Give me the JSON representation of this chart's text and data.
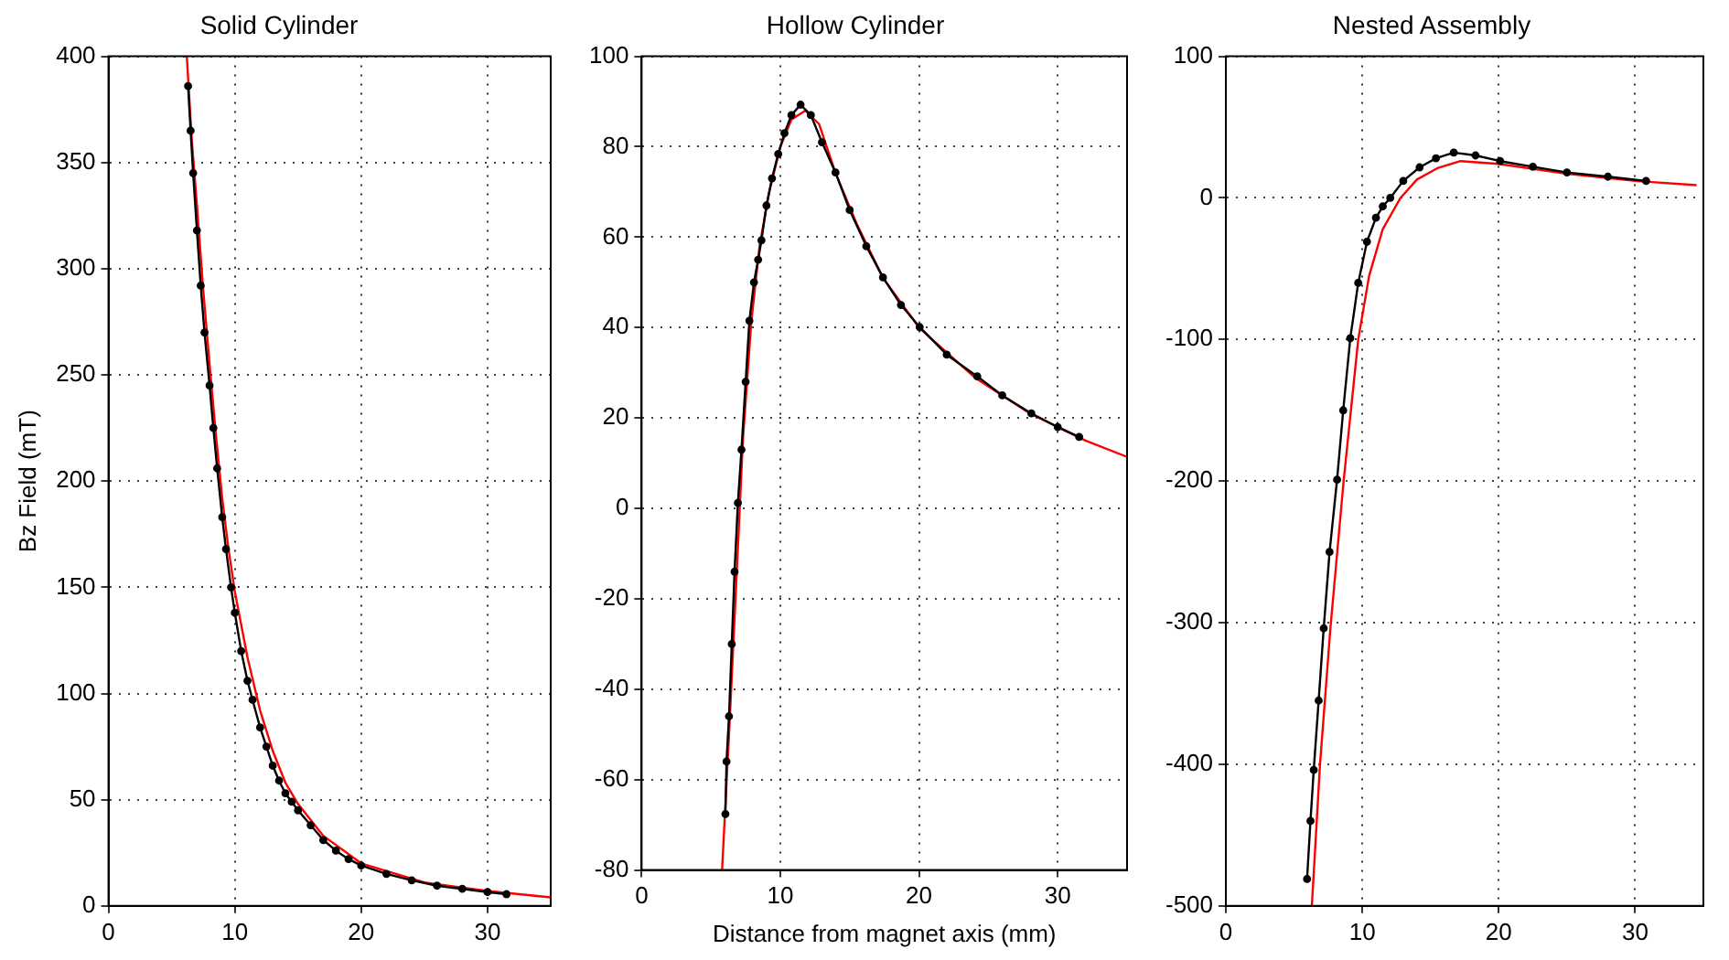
{
  "chart_data": [
    {
      "type": "line",
      "title": "Solid Cylinder",
      "ylabel": "Bz Field (mT)",
      "xlim": [
        0,
        35
      ],
      "xticks": [
        0,
        10,
        20,
        30
      ],
      "ylim": [
        0,
        400
      ],
      "yticks": [
        0,
        50,
        100,
        150,
        200,
        250,
        300,
        350,
        400
      ],
      "grid": true,
      "legend": false,
      "line_style": "solid",
      "series": [
        {
          "color": "#000000",
          "marker": "circle",
          "x": [
            6.3,
            6.5,
            6.7,
            7,
            7.3,
            7.6,
            8,
            8.3,
            8.6,
            9,
            9.3,
            9.7,
            10,
            10.5,
            11,
            11.4,
            12,
            12.5,
            13,
            13.5,
            14,
            14.5,
            15,
            16,
            17,
            18,
            19,
            20,
            22,
            24,
            26,
            28,
            30,
            31.5
          ],
          "values": [
            386,
            365,
            345,
            318,
            292,
            270,
            245,
            225,
            206,
            183,
            168,
            150,
            138,
            120,
            106,
            97,
            84,
            75,
            66,
            59,
            53,
            49,
            45,
            38,
            31,
            26,
            22,
            19,
            15,
            12,
            9.5,
            8,
            6.5,
            5.5
          ]
        },
        {
          "color": "#ff0000",
          "marker": "none",
          "x": [
            6.2,
            6.6,
            7,
            7.5,
            8,
            8.5,
            9,
            9.5,
            10,
            11,
            12,
            13,
            14,
            15,
            17,
            20,
            25,
            30,
            35
          ],
          "values": [
            400,
            360,
            330,
            290,
            255,
            222,
            192,
            168,
            148,
            117,
            92,
            73,
            58,
            48,
            33,
            20,
            11,
            7,
            4
          ]
        }
      ]
    },
    {
      "type": "line",
      "title": "Hollow Cylinder",
      "xlabel": "Distance from magnet axis (mm)",
      "xlim": [
        0,
        35
      ],
      "xticks": [
        0,
        10,
        20,
        30
      ],
      "ylim": [
        -80,
        100
      ],
      "yticks": [
        -80,
        -60,
        -40,
        -20,
        0,
        20,
        40,
        60,
        80,
        100
      ],
      "grid": true,
      "legend": false,
      "line_style": "solid",
      "series": [
        {
          "color": "#000000",
          "marker": "circle",
          "x": [
            6.04,
            6.12,
            6.3,
            6.5,
            6.7,
            6.94,
            7.2,
            7.5,
            7.77,
            8.1,
            8.4,
            8.64,
            9,
            9.4,
            9.85,
            10.3,
            10.8,
            11.46,
            12.2,
            13,
            13.98,
            15,
            16.2,
            17.4,
            18.7,
            20.05,
            22,
            24.2,
            26,
            28.1,
            30,
            31.55
          ],
          "values": [
            -67.6,
            -56,
            -46,
            -30,
            -14,
            1.2,
            13,
            28,
            41.5,
            50,
            55,
            59.3,
            67,
            73,
            78.4,
            83,
            87,
            89.3,
            87,
            81,
            74.3,
            66,
            58,
            51.1,
            45,
            40.1,
            34,
            29.2,
            25,
            21,
            18,
            15.8
          ]
        },
        {
          "color": "#ff0000",
          "marker": "none",
          "x": [
            5.8,
            6.3,
            6.8,
            7.3,
            7.9,
            8.5,
            9.2,
            10,
            10.8,
            11.8,
            12.8,
            14,
            15.5,
            17.4,
            20,
            24,
            28,
            32,
            35
          ],
          "values": [
            -80,
            -50,
            -18,
            15,
            41,
            58,
            70,
            80,
            86,
            88,
            85,
            74,
            63,
            51,
            40,
            29,
            21,
            15,
            11.4
          ]
        }
      ]
    },
    {
      "type": "line",
      "title": "Nested Assembly",
      "xlim": [
        0,
        35
      ],
      "xticks": [
        0,
        10,
        20,
        30
      ],
      "ylim": [
        -500,
        100
      ],
      "yticks": [
        -500,
        -400,
        -300,
        -200,
        -100,
        0,
        100
      ],
      "grid": true,
      "legend": false,
      "line_style": "solid",
      "series": [
        {
          "color": "#000000",
          "marker": "circle",
          "x": [
            5.95,
            6.2,
            6.44,
            6.8,
            7.17,
            7.6,
            8.15,
            8.6,
            9.12,
            9.7,
            10.34,
            11,
            11.5,
            12.05,
            13,
            14.2,
            15.4,
            16.7,
            18.3,
            20.1,
            22.5,
            25,
            28,
            30.8
          ],
          "values": [
            -481,
            -440,
            -404,
            -355,
            -304,
            -250,
            -199,
            -150,
            -99,
            -60,
            -31,
            -14,
            -6,
            0,
            12,
            21.6,
            28,
            32,
            30,
            26,
            22,
            18,
            15,
            12
          ]
        },
        {
          "color": "#ff0000",
          "marker": "none",
          "x": [
            6.3,
            6.9,
            7.66,
            8.63,
            9.7,
            10.5,
            11.5,
            12.8,
            14,
            15.5,
            17.2,
            20,
            25,
            30,
            34.5
          ],
          "values": [
            -500,
            -400,
            -304,
            -200,
            -100,
            -55,
            -22,
            0,
            13,
            21,
            26,
            24,
            17,
            12,
            9
          ]
        }
      ]
    }
  ]
}
